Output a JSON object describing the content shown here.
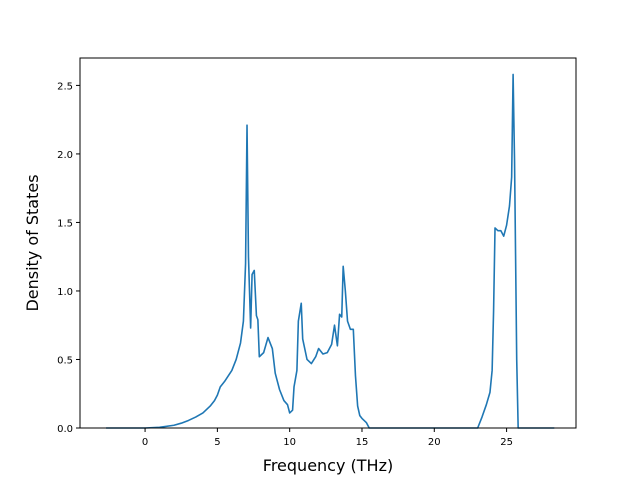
{
  "chart_data": {
    "type": "line",
    "title": "",
    "xlabel": "Frequency (THz)",
    "ylabel": "Density of States",
    "xlim": [
      -4.5,
      29.8
    ],
    "ylim": [
      0,
      2.7
    ],
    "xticks": [
      0,
      5,
      10,
      15,
      20,
      25
    ],
    "yticks": [
      0.0,
      0.5,
      1.0,
      1.5,
      2.0,
      2.5
    ],
    "xtick_labels": [
      "0",
      "5",
      "10",
      "15",
      "20",
      "25"
    ],
    "ytick_labels": [
      "0.0",
      "0.5",
      "1.0",
      "1.5",
      "2.0",
      "2.5"
    ],
    "grid": false,
    "legend": "none",
    "series": [
      {
        "color": "#1f77b4",
        "x": [
          -2.7,
          0.0,
          1.0,
          2.0,
          2.5,
          3.0,
          3.5,
          4.0,
          4.5,
          4.8,
          5.0,
          5.2,
          5.5,
          6.0,
          6.3,
          6.6,
          6.8,
          6.95,
          7.05,
          7.15,
          7.3,
          7.4,
          7.55,
          7.7,
          7.8,
          7.9,
          8.2,
          8.5,
          8.8,
          9.0,
          9.3,
          9.6,
          9.85,
          10.0,
          10.2,
          10.3,
          10.5,
          10.6,
          10.8,
          10.9,
          11.2,
          11.5,
          11.8,
          12.0,
          12.3,
          12.6,
          12.9,
          13.1,
          13.3,
          13.45,
          13.6,
          13.7,
          13.85,
          14.0,
          14.2,
          14.4,
          14.55,
          14.7,
          14.85,
          15.0,
          15.3,
          15.5,
          15.6,
          16.0,
          20.0,
          23.0,
          23.3,
          23.6,
          23.85,
          24.0,
          24.1,
          24.2,
          24.4,
          24.6,
          24.8,
          25.0,
          25.2,
          25.35,
          25.45,
          25.55,
          25.7,
          25.8,
          26.0,
          28.3
        ],
        "y": [
          0.0,
          0.0,
          0.005,
          0.02,
          0.035,
          0.055,
          0.08,
          0.11,
          0.16,
          0.2,
          0.24,
          0.3,
          0.34,
          0.42,
          0.5,
          0.62,
          0.78,
          1.2,
          2.21,
          1.25,
          0.73,
          1.12,
          1.15,
          0.82,
          0.79,
          0.52,
          0.55,
          0.66,
          0.58,
          0.4,
          0.28,
          0.2,
          0.17,
          0.11,
          0.13,
          0.3,
          0.42,
          0.78,
          0.91,
          0.65,
          0.5,
          0.47,
          0.52,
          0.58,
          0.54,
          0.55,
          0.61,
          0.75,
          0.6,
          0.83,
          0.81,
          1.18,
          1.0,
          0.78,
          0.72,
          0.72,
          0.38,
          0.16,
          0.09,
          0.07,
          0.04,
          0.0,
          0.0,
          0.0,
          0.0,
          0.0,
          0.08,
          0.17,
          0.26,
          0.42,
          0.85,
          1.46,
          1.44,
          1.44,
          1.4,
          1.48,
          1.62,
          1.83,
          2.58,
          1.95,
          0.5,
          0.0,
          0.0,
          0.0
        ]
      }
    ]
  }
}
